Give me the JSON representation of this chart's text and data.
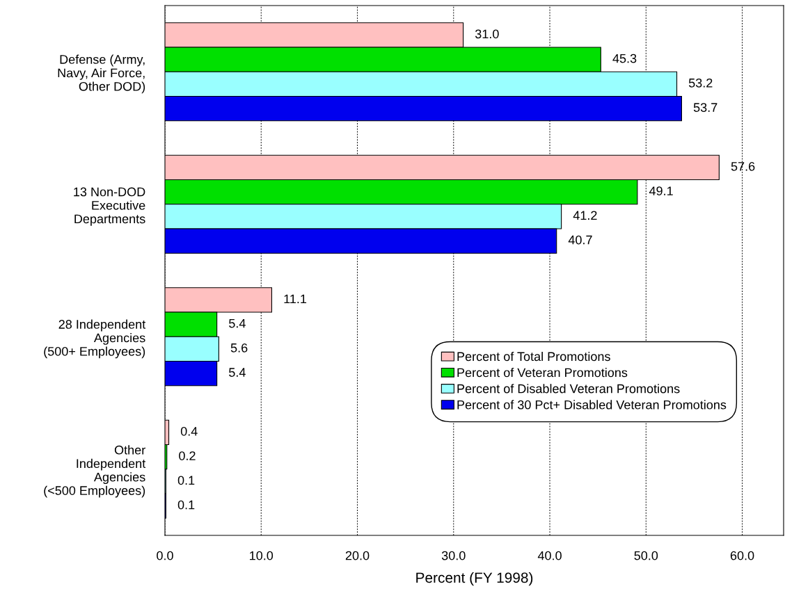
{
  "chart_data": {
    "type": "bar",
    "orientation": "horizontal",
    "xlabel": "Percent (FY 1998)",
    "categories": [
      "Defense (Army,\nNavy, Air Force,\nOther DOD)",
      "13 Non-DOD\nExecutive\nDepartments",
      "28 Independent\nAgencies\n(500+ Employees)",
      "Other\nIndependent\nAgencies\n(<500 Employees)"
    ],
    "series": [
      {
        "name": "Percent of Total Promotions",
        "color": "#ffc0c0",
        "values": [
          31.0,
          57.6,
          11.1,
          0.4
        ],
        "value_labels": [
          "31.0",
          "57.6",
          "11.1",
          "0.4"
        ]
      },
      {
        "name": "Percent of Veteran Promotions",
        "color": "#00e000",
        "values": [
          45.3,
          49.1,
          5.4,
          0.2
        ],
        "value_labels": [
          "45.3",
          "49.1",
          "5.4",
          "0.2"
        ]
      },
      {
        "name": "Percent of Disabled Veteran Promotions",
        "color": "#99ffff",
        "values": [
          53.2,
          41.2,
          5.6,
          0.1
        ],
        "value_labels": [
          "53.2",
          "41.2",
          "5.6",
          "0.1"
        ]
      },
      {
        "name": "Percent of 30 Pct+ Disabled Veteran Promotions",
        "color": "#0000ee",
        "values": [
          53.7,
          40.7,
          5.4,
          0.1
        ],
        "value_labels": [
          "53.7",
          "40.7",
          "5.4",
          "0.1"
        ]
      }
    ],
    "xlim": [
      0,
      64.3
    ],
    "xticks": [
      {
        "value": 0,
        "label": "0.0"
      },
      {
        "value": 10,
        "label": "10.0"
      },
      {
        "value": 20,
        "label": "20.0"
      },
      {
        "value": 30,
        "label": "30.0"
      },
      {
        "value": 40,
        "label": "40.0"
      },
      {
        "value": 50,
        "label": "50.0"
      },
      {
        "value": 60,
        "label": "60.0"
      }
    ],
    "grid": "x",
    "legend": "center right"
  }
}
